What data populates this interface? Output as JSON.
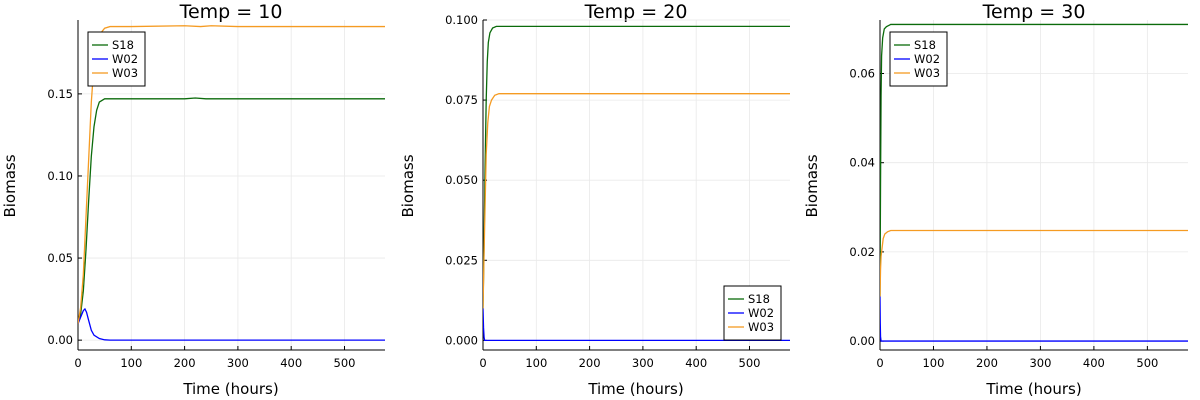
{
  "chart_data": [
    {
      "type": "line",
      "title": "Temp = 10",
      "xlabel": "Time (hours)",
      "ylabel": "Biomass",
      "xlim": [
        0,
        576
      ],
      "ylim": [
        -0.006,
        0.195
      ],
      "xticks": [
        0,
        100,
        200,
        300,
        400,
        500
      ],
      "xtick_labels": [
        "0",
        "100",
        "200",
        "300",
        "400",
        "500"
      ],
      "yticks": [
        0,
        0.05,
        0.1,
        0.15
      ],
      "ytick_labels": [
        "0.00",
        "0.05",
        "0.10",
        "0.15"
      ],
      "grid": true,
      "legend_position": "top-left",
      "series": [
        {
          "name": "S18",
          "color": "#0b6b0b",
          "points": [
            [
              0,
              0.01
            ],
            [
              5,
              0.016
            ],
            [
              10,
              0.03
            ],
            [
              15,
              0.055
            ],
            [
              20,
              0.085
            ],
            [
              25,
              0.112
            ],
            [
              30,
              0.13
            ],
            [
              35,
              0.14
            ],
            [
              40,
              0.145
            ],
            [
              50,
              0.147
            ],
            [
              100,
              0.147
            ],
            [
              200,
              0.147
            ],
            [
              220,
              0.1475
            ],
            [
              240,
              0.147
            ],
            [
              300,
              0.147
            ],
            [
              576,
              0.147
            ]
          ]
        },
        {
          "name": "W02",
          "color": "#0000ff",
          "points": [
            [
              0,
              0.01
            ],
            [
              5,
              0.014
            ],
            [
              10,
              0.018
            ],
            [
              13,
              0.019
            ],
            [
              16,
              0.017
            ],
            [
              20,
              0.012
            ],
            [
              25,
              0.006
            ],
            [
              30,
              0.003
            ],
            [
              40,
              0.001
            ],
            [
              50,
              0.0002
            ],
            [
              60,
              0
            ],
            [
              576,
              0
            ]
          ]
        },
        {
          "name": "W03",
          "color": "#f59b22",
          "points": [
            [
              0,
              0.01
            ],
            [
              5,
              0.02
            ],
            [
              10,
              0.04
            ],
            [
              15,
              0.075
            ],
            [
              20,
              0.11
            ],
            [
              25,
              0.145
            ],
            [
              30,
              0.168
            ],
            [
              35,
              0.18
            ],
            [
              40,
              0.186
            ],
            [
              50,
              0.19
            ],
            [
              60,
              0.191
            ],
            [
              100,
              0.191
            ],
            [
              200,
              0.1915
            ],
            [
              230,
              0.191
            ],
            [
              250,
              0.1915
            ],
            [
              300,
              0.191
            ],
            [
              576,
              0.191
            ]
          ]
        }
      ]
    },
    {
      "type": "line",
      "title": "Temp = 20",
      "xlabel": "Time (hours)",
      "ylabel": "Biomass",
      "xlim": [
        0,
        576
      ],
      "ylim": [
        -0.003,
        0.1
      ],
      "xticks": [
        0,
        100,
        200,
        300,
        400,
        500
      ],
      "xtick_labels": [
        "0",
        "100",
        "200",
        "300",
        "400",
        "500"
      ],
      "yticks": [
        0,
        0.025,
        0.05,
        0.075,
        0.1
      ],
      "ytick_labels": [
        "0.000",
        "0.025",
        "0.050",
        "0.075",
        "0.100"
      ],
      "grid": true,
      "legend_position": "bottom-right",
      "series": [
        {
          "name": "S18",
          "color": "#0b6b0b",
          "points": [
            [
              0,
              0.01
            ],
            [
              2,
              0.03
            ],
            [
              4,
              0.055
            ],
            [
              6,
              0.075
            ],
            [
              8,
              0.087
            ],
            [
              10,
              0.093
            ],
            [
              13,
              0.096
            ],
            [
              18,
              0.0975
            ],
            [
              25,
              0.098
            ],
            [
              576,
              0.098
            ]
          ]
        },
        {
          "name": "W02",
          "color": "#0000ff",
          "points": [
            [
              0,
              0.01
            ],
            [
              1,
              0.004
            ],
            [
              2,
              0.001
            ],
            [
              3,
              0
            ],
            [
              576,
              0
            ]
          ]
        },
        {
          "name": "W03",
          "color": "#f59b22",
          "points": [
            [
              0,
              0.01
            ],
            [
              3,
              0.035
            ],
            [
              6,
              0.058
            ],
            [
              9,
              0.068
            ],
            [
              12,
              0.073
            ],
            [
              16,
              0.075
            ],
            [
              22,
              0.0765
            ],
            [
              30,
              0.077
            ],
            [
              576,
              0.077
            ]
          ]
        }
      ]
    },
    {
      "type": "line",
      "title": "Temp = 30",
      "xlabel": "Time (hours)",
      "ylabel": "Biomass",
      "xlim": [
        0,
        576
      ],
      "ylim": [
        -0.002,
        0.072
      ],
      "xticks": [
        0,
        100,
        200,
        300,
        400,
        500
      ],
      "xtick_labels": [
        "0",
        "100",
        "200",
        "300",
        "400",
        "500"
      ],
      "yticks": [
        0,
        0.02,
        0.04,
        0.06
      ],
      "ytick_labels": [
        "0.00",
        "0.02",
        "0.04",
        "0.06"
      ],
      "grid": true,
      "legend_position": "top-left",
      "series": [
        {
          "name": "S18",
          "color": "#0b6b0b",
          "points": [
            [
              0,
              0.01
            ],
            [
              1,
              0.035
            ],
            [
              2,
              0.055
            ],
            [
              3,
              0.064
            ],
            [
              5,
              0.068
            ],
            [
              8,
              0.07
            ],
            [
              12,
              0.0705
            ],
            [
              20,
              0.071
            ],
            [
              576,
              0.071
            ]
          ]
        },
        {
          "name": "W02",
          "color": "#0000ff",
          "points": [
            [
              0,
              0.01
            ],
            [
              0.5,
              0.004
            ],
            [
              1,
              0.001
            ],
            [
              2,
              0
            ],
            [
              576,
              0
            ]
          ]
        },
        {
          "name": "W03",
          "color": "#f59b22",
          "points": [
            [
              0,
              0.01
            ],
            [
              1,
              0.016
            ],
            [
              2,
              0.019
            ],
            [
              4,
              0.021
            ],
            [
              6,
              0.023
            ],
            [
              9,
              0.024
            ],
            [
              14,
              0.0245
            ],
            [
              20,
              0.0248
            ],
            [
              576,
              0.0248
            ]
          ]
        }
      ]
    }
  ]
}
